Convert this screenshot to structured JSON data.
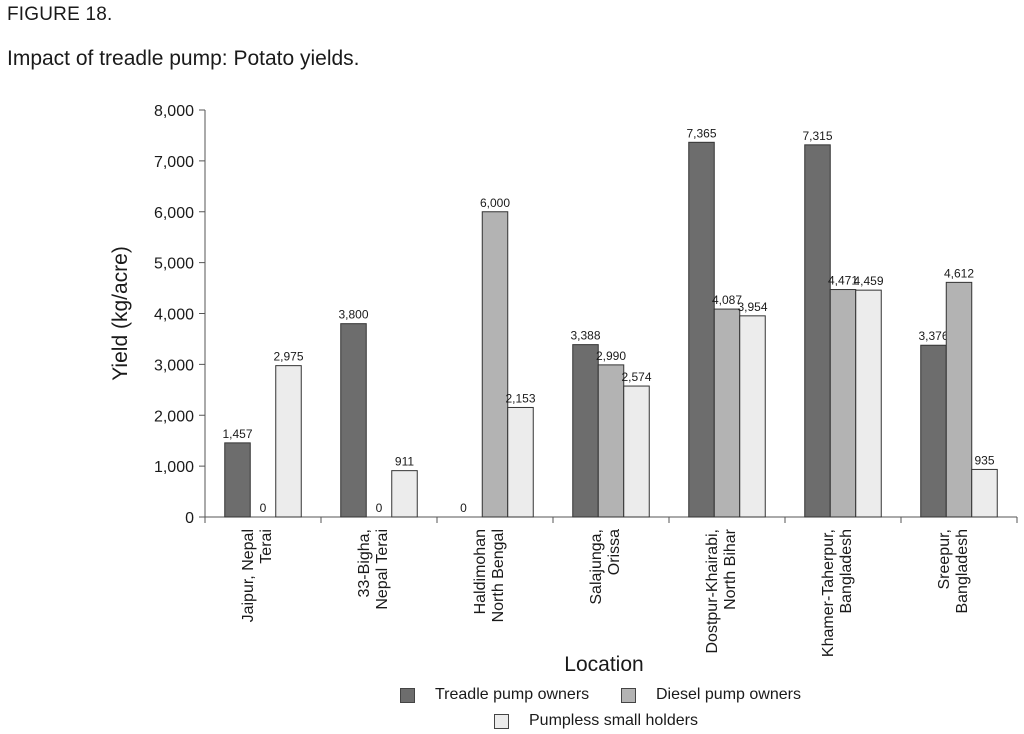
{
  "figure_label": "FIGURE 18.",
  "figure_title": "Impact of treadle pump: Potato yields.",
  "chart_data": {
    "type": "bar",
    "xlabel": "Location",
    "ylabel": "Yield (kg/acre)",
    "ylim": [
      0,
      8000
    ],
    "yticks": [
      "0",
      "1,000",
      "2,000",
      "3,000",
      "4,000",
      "5,000",
      "6,000",
      "7,000",
      "8,000"
    ],
    "grid": false,
    "legend_position": "bottom",
    "categories": [
      [
        "Jaipur, Nepal",
        "Terai"
      ],
      [
        "33-Bigha,",
        "Nepal Terai"
      ],
      [
        "Haldimohan",
        "North Bengal"
      ],
      [
        "Salajunga,",
        "Orissa"
      ],
      [
        "Dostpur-Khairabi,",
        "North Bihar"
      ],
      [
        "Khamer-Taherpur,",
        "Bangladesh"
      ],
      [
        "Sreepur,",
        "Bangladesh"
      ]
    ],
    "series": [
      {
        "name": "Treadle pump owners",
        "color": "#6d6d6d",
        "values": [
          1457,
          3800,
          null,
          3388,
          7365,
          7315,
          3376
        ],
        "labels": [
          "1,457",
          "3,800",
          "",
          "3,388",
          "7,365",
          "7,315",
          "3,376"
        ]
      },
      {
        "name": "Diesel pump owners",
        "color": "#b3b3b3",
        "values": [
          0,
          0,
          6000,
          2990,
          4087,
          4471,
          4612
        ],
        "labels": [
          "0",
          "0",
          "6,000",
          "2,990",
          "4,087",
          "4,471",
          "4,612"
        ]
      },
      {
        "name": "Pumpless small holders",
        "color": "#ececec",
        "values": [
          2975,
          911,
          2153,
          2574,
          3954,
          4459,
          935
        ],
        "labels": [
          "2,975",
          "911",
          "2,153",
          "2,574",
          "3,954",
          "4,459",
          "935"
        ]
      }
    ],
    "extra_labels": [
      {
        "category": 2,
        "series": 0,
        "text": "0"
      }
    ]
  }
}
